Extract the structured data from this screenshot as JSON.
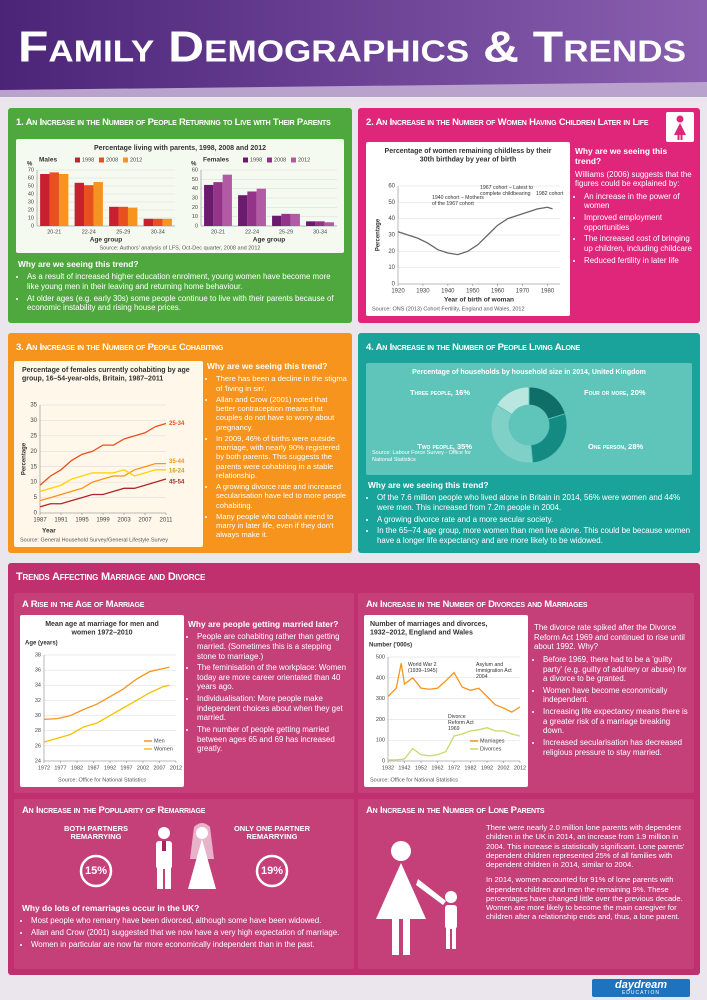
{
  "header": {
    "title": "Family Demographics & Trends"
  },
  "p1": {
    "title": "1. An Increase in the Number of People Returning to Live with Their Parents",
    "heading": "Why are we seeing this trend?",
    "bullets": [
      "As a result of increased higher education enrolment, young women have become more like young men in their leaving and returning home behaviour.",
      "At older ages (e.g. early 30s) some people continue to live with their parents because of economic instability and rising house prices."
    ]
  },
  "p2": {
    "title": "2. An Increase in the Number of Women Having Children Later in Life",
    "heading": "Why are we seeing this trend?",
    "intro": "Williams (2006) suggests that the figures could be explained by:",
    "bullets": [
      "An increase in the power of women",
      "Improved employment opportunities",
      "The increased cost of bringing up children, including childcare",
      "Reduced fertility in later life"
    ]
  },
  "p3": {
    "title": "3. An Increase in the Number of People Cohabiting",
    "heading": "Why are we seeing this trend?",
    "bullets": [
      "There has been a decline in the stigma of 'living in sin'.",
      "Allan and Crow (2001) noted that better contraception means that couples do not have to worry about pregnancy.",
      "In 2009, 46% of births were outside marriage, with nearly 90% registered by both parents. This suggests the parents were cohabiting in a stable relationship.",
      "A growing divorce rate and increased secularisation have led to more people cohabiting.",
      "Many people who cohabit intend to marry in later life, even if they don't always make it."
    ]
  },
  "p4": {
    "title": "4. An Increase in the Number of People Living Alone",
    "heading": "Why are we seeing this trend?",
    "bullets": [
      "Of the 7.6 million people who lived alone in Britain in 2014, 56% were women and 44% were men. This increased from 7.2m people in 2004.",
      "A growing divorce rate and a more secular society.",
      "In the 65–74 age group, more women than men live alone. This could be because women have a longer life expectancy and are more likely to be widowed."
    ]
  },
  "marriage": {
    "title": "Trends Affecting Marriage and Divorce",
    "age": {
      "title": "A Rise in the Age of Marriage",
      "heading": "Why are people getting married later?",
      "bullets": [
        "People are cohabiting rather than getting married. (Sometimes this is a stepping stone to marriage.)",
        "The feminisation of the workplace: Women today are more career orientated than 40 years ago.",
        "Individualisation: More people make independent choices about when they get married.",
        "The number of people getting married between ages 65 and 69 has increased greatly."
      ]
    },
    "divorce": {
      "title": "An Increase in the Number of Divorces and Marriages",
      "intro": "The divorce rate spiked after the Divorce Reform Act 1969 and continued to rise until about 1992. Why?",
      "bullets": [
        "Before 1969, there had to be a 'guilty party' (e.g. guilty of adultery or abuse) for a divorce to be granted.",
        "Women have become economically independent.",
        "Increasing life expectancy means there is a greater risk of a marriage breaking down.",
        "Increased secularisation has decreased religious pressure to stay married."
      ]
    },
    "remarriage": {
      "title": "An Increase in the Popularity of Remarriage",
      "items": [
        {
          "label": "Both partners remarrying",
          "value": "15%"
        },
        {
          "label": "Only one partner remarrying",
          "value": "19%"
        }
      ],
      "heading": "Why do lots of remarriages occur in the UK?",
      "bullets": [
        "Most people who remarry have been divorced, although some have been widowed.",
        "Allan and Crow (2001) suggested that we now have a very high expectation of marriage.",
        "Women in particular are now far more economically independent than in the past."
      ]
    },
    "lone": {
      "title": "An Increase in the Number of Lone Parents",
      "paragraphs": [
        "There were nearly 2.0 million lone parents with dependent children in the UK in 2014, an increase from 1.9 million in 2004. This increase is statistically significant. Lone parents' dependent children represented 25% of all families with dependent children in 2014, similar to 2004.",
        "In 2014, women accounted for 91% of lone parents with dependent children and men the remaining 9%. These percentages have changed little over the previous decade. Women are more likely to become the main caregiver for children after a relationship ends and, thus, a lone parent."
      ]
    }
  },
  "footer": {
    "logo": "daydream",
    "tagline": "education"
  },
  "chart_data": [
    {
      "type": "bar",
      "title": "Percentage living with parents, 1998, 2008 and 2012",
      "subtitle": "Males",
      "y_label": "%",
      "x_label": "Age group",
      "categories": [
        "20-21",
        "22-24",
        "25-29",
        "30-34"
      ],
      "series": [
        {
          "name": "1998",
          "color": "#c8202f",
          "values": [
            65,
            54,
            24,
            9
          ]
        },
        {
          "name": "2008",
          "color": "#e8501f",
          "values": [
            67,
            51,
            24,
            9
          ]
        },
        {
          "name": "2012",
          "color": "#f7941d",
          "values": [
            65,
            55,
            23,
            9
          ]
        }
      ],
      "ylim": [
        0,
        70
      ],
      "yticks": [
        0,
        10,
        20,
        30,
        40,
        50,
        60,
        70
      ],
      "grid": true
    },
    {
      "type": "bar",
      "subtitle": "Females",
      "y_label": "%",
      "x_label": "Age group",
      "categories": [
        "20-21",
        "22-24",
        "25-29",
        "30-34"
      ],
      "series": [
        {
          "name": "1998",
          "color": "#6a1b6e",
          "values": [
            44,
            33,
            11,
            5
          ]
        },
        {
          "name": "2008",
          "color": "#93338a",
          "values": [
            47,
            37,
            13,
            5
          ]
        },
        {
          "name": "2012",
          "color": "#b25aa4",
          "values": [
            55,
            40,
            13,
            4
          ]
        }
      ],
      "ylim": [
        0,
        60
      ],
      "yticks": [
        0,
        10,
        20,
        30,
        40,
        50,
        60
      ],
      "grid": true,
      "source": "Source: Authors' analysis of LFS, Oct-Dec quarter, 2008 and 2012"
    },
    {
      "type": "line",
      "title": "Percentage of women remaining childless by their 30th birthday by year of birth",
      "y_label": "Percentage",
      "x_label": "Year of birth of woman",
      "x": [
        1920,
        1924,
        1928,
        1932,
        1936,
        1940,
        1944,
        1948,
        1952,
        1956,
        1960,
        1964,
        1968,
        1972,
        1976,
        1980,
        1982
      ],
      "series": [
        {
          "color": "#666666",
          "values": [
            32,
            30,
            28,
            25,
            21,
            19,
            18,
            20,
            24,
            30,
            36,
            40,
            42,
            44,
            46,
            47,
            46
          ]
        }
      ],
      "xlim": [
        1920,
        1985
      ],
      "xticks": [
        1920,
        1930,
        1940,
        1950,
        1960,
        1970,
        1980
      ],
      "ylim": [
        0,
        60
      ],
      "yticks": [
        0,
        10,
        20,
        30,
        40,
        50,
        60
      ],
      "grid": true,
      "annotations": [
        "1940 cohort – Mothers of the 1967 cohort",
        "1967 cohort – Latest to complete childbearing",
        "1982 cohort"
      ],
      "source": "Source: ONS (2013) Cohort Fertility, England and Wales, 2012"
    },
    {
      "type": "line",
      "title": "Percentage of females currently cohabiting by age group, 16–54-year-olds, Britain, 1987–2011",
      "y_label": "Percentage",
      "x_label": "Year",
      "x": [
        1987,
        1989,
        1991,
        1993,
        1995,
        1997,
        1999,
        2001,
        2003,
        2005,
        2007,
        2009,
        2011
      ],
      "series": [
        {
          "name": "25-34",
          "color": "#e8501f",
          "values": [
            9,
            12,
            14,
            17,
            19,
            20,
            22,
            22,
            24,
            25,
            26,
            28,
            29
          ]
        },
        {
          "name": "35-44",
          "color": "#f7941d",
          "values": [
            4,
            5,
            6,
            7,
            8,
            10,
            11,
            12,
            12,
            14,
            15,
            16,
            16
          ]
        },
        {
          "name": "16-24",
          "color": "#ffd200",
          "values": [
            7,
            8,
            9,
            11,
            12,
            13,
            13,
            13,
            14,
            12,
            13,
            14,
            14
          ]
        },
        {
          "name": "45-54",
          "color": "#b0252c",
          "values": [
            2,
            3,
            3,
            4,
            5,
            6,
            6,
            7,
            8,
            8,
            9,
            10,
            11
          ]
        }
      ],
      "xlim": [
        1987,
        2011
      ],
      "xticks": [
        1987,
        1991,
        1995,
        1999,
        2003,
        2007,
        2011
      ],
      "ylim": [
        0,
        35
      ],
      "yticks": [
        0,
        5,
        10,
        15,
        20,
        25,
        30,
        35
      ],
      "grid": true,
      "source": "Source: General Household Survey/General Lifestyle Survey"
    },
    {
      "type": "pie",
      "donut": true,
      "title": "Percentage of households by household size in 2014, United Kingdom",
      "values": [
        20,
        28,
        35,
        16
      ],
      "value_labels": [
        "Four or more, 20%",
        "One person, 28%",
        "Two people, 35%",
        "Three people, 16%"
      ],
      "colors": [
        "#0f6e67",
        "#138a82",
        "#7fd0c6",
        "#b9e6df"
      ],
      "source": "Source: Labour Force Survey - Office for National Statistics"
    },
    {
      "type": "line",
      "title": "Mean age at marriage for men and women 1972–2010",
      "y_label": "Age (years)",
      "x": [
        1972,
        1976,
        1980,
        1984,
        1988,
        1992,
        1996,
        2000,
        2004,
        2008,
        2010
      ],
      "series": [
        {
          "name": "Men",
          "color": "#f7941d",
          "values": [
            29.5,
            29.6,
            30,
            30.8,
            31.5,
            32.5,
            33.5,
            34.8,
            35.8,
            36.2,
            36.4
          ]
        },
        {
          "name": "Women",
          "color": "#f2c200",
          "values": [
            26.5,
            27,
            27.5,
            28.5,
            29,
            30,
            31,
            32,
            33,
            33.8,
            34
          ]
        }
      ],
      "xlim": [
        1972,
        2012
      ],
      "xticks": [
        1972,
        1977,
        1982,
        1987,
        1992,
        1997,
        2002,
        2007,
        2012
      ],
      "ylim": [
        24,
        38
      ],
      "yticks": [
        24,
        26,
        28,
        30,
        32,
        34,
        36,
        38
      ],
      "grid": true,
      "source": "Source: Office for National Statistics"
    },
    {
      "type": "line",
      "title": "Number of marriages and divorces, 1932–2012, England and Wales",
      "y_label": "Number ('000s)",
      "x": [
        1932,
        1937,
        1940,
        1942,
        1947,
        1952,
        1957,
        1962,
        1967,
        1972,
        1977,
        1982,
        1987,
        1992,
        1997,
        2002,
        2007,
        2012
      ],
      "series": [
        {
          "name": "Marriages",
          "color": "#f7941d",
          "values": [
            310,
            350,
            470,
            370,
            400,
            350,
            345,
            350,
            385,
            425,
            355,
            340,
            350,
            310,
            270,
            255,
            235,
            260
          ]
        },
        {
          "name": "Divorces",
          "color": "#c9d96a",
          "values": [
            5,
            6,
            8,
            10,
            60,
            30,
            25,
            30,
            45,
            120,
            130,
            145,
            150,
            160,
            145,
            145,
            130,
            120
          ]
        }
      ],
      "xlim": [
        1932,
        2012
      ],
      "xticks": [
        1932,
        1942,
        1952,
        1962,
        1972,
        1982,
        1992,
        2002,
        2012
      ],
      "ylim": [
        0,
        500
      ],
      "yticks": [
        0,
        100,
        200,
        300,
        400,
        500
      ],
      "grid": true,
      "annotations": [
        "World War 2 (1939–1945)",
        "Asylum and Immigration Act 2004",
        "Divorce Reform Act 1969"
      ],
      "source": "Source: Office for National Statistics"
    }
  ]
}
